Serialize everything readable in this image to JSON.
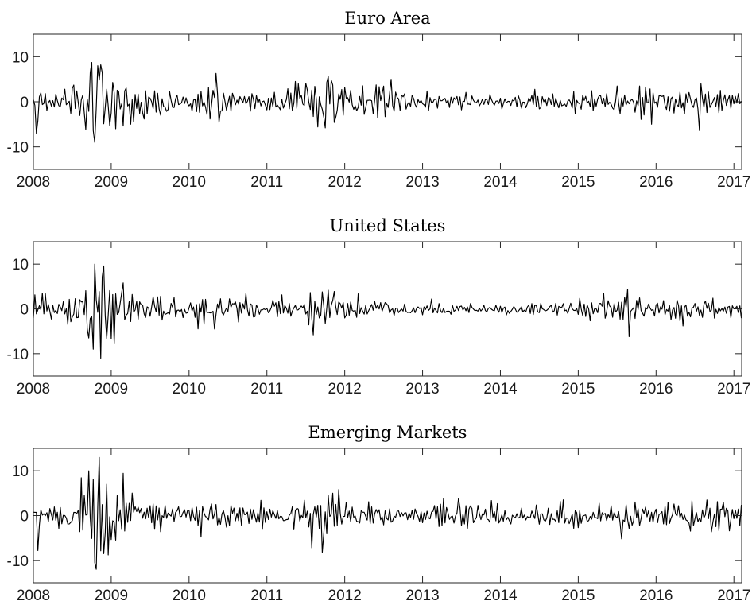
{
  "style": {
    "line_color": "#000000",
    "axis_color": "#262626",
    "background": "#ffffff"
  },
  "chart_data": [
    {
      "type": "line",
      "title": "Euro Area",
      "xlabel": "",
      "ylabel": "",
      "xlim": [
        2008,
        2017.1
      ],
      "ylim": [
        -15,
        15
      ],
      "x_ticks": [
        2008,
        2009,
        2010,
        2011,
        2012,
        2013,
        2014,
        2015,
        2016,
        2017
      ],
      "x_tick_labels": [
        "2008",
        "2009",
        "2010",
        "2011",
        "2012",
        "2013",
        "2014",
        "2015",
        "2016",
        "2017"
      ],
      "y_ticks": [
        10,
        0,
        -10
      ],
      "y_tick_labels": [
        "10",
        "0",
        "-10"
      ],
      "grid": false,
      "x_step": 0.01923,
      "amplitude_profile": [
        [
          2008.0,
          1.6
        ],
        [
          2008.05,
          3.0
        ],
        [
          2008.2,
          1.6
        ],
        [
          2008.4,
          2.3
        ],
        [
          2008.6,
          4.2
        ],
        [
          2008.75,
          6.5
        ],
        [
          2008.9,
          5.5
        ],
        [
          2009.1,
          3.2
        ],
        [
          2009.4,
          2.4
        ],
        [
          2010.0,
          1.6
        ],
        [
          2010.35,
          3.0
        ],
        [
          2010.6,
          1.6
        ],
        [
          2011.0,
          1.2
        ],
        [
          2011.5,
          2.6
        ],
        [
          2011.75,
          4.3
        ],
        [
          2012.0,
          2.6
        ],
        [
          2012.5,
          2.2
        ],
        [
          2013.0,
          1.1
        ],
        [
          2014.0,
          1.0
        ],
        [
          2015.0,
          1.4
        ],
        [
          2015.6,
          2.0
        ],
        [
          2016.0,
          1.9
        ],
        [
          2016.5,
          2.4
        ],
        [
          2016.7,
          1.6
        ],
        [
          2017.1,
          1.2
        ]
      ],
      "spikes": [
        [
          2008.03,
          -7.0
        ],
        [
          2008.78,
          -9.0
        ],
        [
          2008.82,
          8.0
        ],
        [
          2008.86,
          8.2
        ],
        [
          2008.74,
          6.5
        ],
        [
          2009.05,
          -6.0
        ],
        [
          2009.25,
          -5.0
        ],
        [
          2010.35,
          6.3
        ],
        [
          2010.38,
          -4.6
        ],
        [
          2011.66,
          -5.6
        ],
        [
          2011.75,
          -5.8
        ],
        [
          2011.78,
          5.6
        ],
        [
          2011.82,
          4.8
        ],
        [
          2012.6,
          5.0
        ],
        [
          2015.5,
          3.5
        ],
        [
          2015.95,
          -5.0
        ],
        [
          2016.55,
          -6.4
        ],
        [
          2016.57,
          4.0
        ]
      ],
      "seed": 11
    },
    {
      "type": "line",
      "title": "United States",
      "xlabel": "",
      "ylabel": "",
      "xlim": [
        2008,
        2017.1
      ],
      "ylim": [
        -15,
        15
      ],
      "x_ticks": [
        2008,
        2009,
        2010,
        2011,
        2012,
        2013,
        2014,
        2015,
        2016,
        2017
      ],
      "x_tick_labels": [
        "2008",
        "2009",
        "2010",
        "2011",
        "2012",
        "2013",
        "2014",
        "2015",
        "2016",
        "2017"
      ],
      "y_ticks": [
        10,
        0,
        -10
      ],
      "y_tick_labels": [
        "10",
        "0",
        "-10"
      ],
      "grid": false,
      "x_step": 0.01923,
      "amplitude_profile": [
        [
          2008.0,
          1.8
        ],
        [
          2008.4,
          1.9
        ],
        [
          2008.7,
          4.5
        ],
        [
          2008.85,
          6.5
        ],
        [
          2009.0,
          4.8
        ],
        [
          2009.3,
          2.8
        ],
        [
          2009.8,
          1.6
        ],
        [
          2010.3,
          2.4
        ],
        [
          2010.6,
          1.9
        ],
        [
          2011.0,
          1.1
        ],
        [
          2011.5,
          1.9
        ],
        [
          2011.7,
          3.2
        ],
        [
          2012.0,
          1.6
        ],
        [
          2012.5,
          1.1
        ],
        [
          2013.0,
          0.9
        ],
        [
          2014.0,
          0.8
        ],
        [
          2014.8,
          1.0
        ],
        [
          2015.0,
          1.3
        ],
        [
          2015.6,
          1.6
        ],
        [
          2016.0,
          1.5
        ],
        [
          2016.5,
          1.5
        ],
        [
          2017.1,
          1.0
        ]
      ],
      "spikes": [
        [
          2008.77,
          -9.0
        ],
        [
          2008.79,
          10.0
        ],
        [
          2008.9,
          9.6
        ],
        [
          2008.95,
          -6.6
        ],
        [
          2009.15,
          5.8
        ],
        [
          2008.72,
          -6.5
        ],
        [
          2010.32,
          -4.5
        ],
        [
          2011.6,
          -5.8
        ],
        [
          2011.72,
          3.8
        ],
        [
          2015.66,
          -6.2
        ],
        [
          2015.64,
          4.4
        ],
        [
          2016.35,
          -3.8
        ]
      ],
      "seed": 23
    },
    {
      "type": "line",
      "title": "Emerging Markets",
      "xlabel": "",
      "ylabel": "",
      "xlim": [
        2008,
        2017.1
      ],
      "ylim": [
        -15,
        15
      ],
      "x_ticks": [
        2008,
        2009,
        2010,
        2011,
        2012,
        2013,
        2014,
        2015,
        2016,
        2017
      ],
      "x_tick_labels": [
        "2008",
        "2009",
        "2010",
        "2011",
        "2012",
        "2013",
        "2014",
        "2015",
        "2016",
        "2017"
      ],
      "y_ticks": [
        10,
        0,
        -10
      ],
      "y_tick_labels": [
        "10",
        "0",
        "-10"
      ],
      "grid": false,
      "x_step": 0.01923,
      "amplitude_profile": [
        [
          2008.0,
          2.2
        ],
        [
          2008.4,
          1.8
        ],
        [
          2008.7,
          5.5
        ],
        [
          2008.85,
          8.0
        ],
        [
          2009.0,
          5.5
        ],
        [
          2009.2,
          3.0
        ],
        [
          2009.6,
          2.4
        ],
        [
          2010.0,
          1.8
        ],
        [
          2010.6,
          2.0
        ],
        [
          2011.0,
          1.5
        ],
        [
          2011.5,
          2.2
        ],
        [
          2011.75,
          3.5
        ],
        [
          2012.0,
          2.2
        ],
        [
          2012.5,
          1.6
        ],
        [
          2013.0,
          1.2
        ],
        [
          2013.5,
          2.3
        ],
        [
          2014.0,
          1.3
        ],
        [
          2015.0,
          1.5
        ],
        [
          2015.6,
          1.8
        ],
        [
          2016.0,
          2.0
        ],
        [
          2016.5,
          2.1
        ],
        [
          2017.1,
          1.6
        ]
      ],
      "spikes": [
        [
          2008.06,
          -7.8
        ],
        [
          2008.72,
          10.0
        ],
        [
          2008.78,
          -10.5
        ],
        [
          2008.81,
          -12.0
        ],
        [
          2008.84,
          13.0
        ],
        [
          2008.9,
          -8.5
        ],
        [
          2008.95,
          7.0
        ],
        [
          2009.05,
          -5.5
        ],
        [
          2010.15,
          -4.8
        ],
        [
          2011.58,
          -7.2
        ],
        [
          2011.72,
          -8.2
        ],
        [
          2011.78,
          4.5
        ],
        [
          2013.47,
          3.8
        ],
        [
          2015.55,
          -5.2
        ],
        [
          2016.65,
          3.5
        ],
        [
          2016.95,
          -3.4
        ]
      ],
      "seed": 37
    }
  ]
}
